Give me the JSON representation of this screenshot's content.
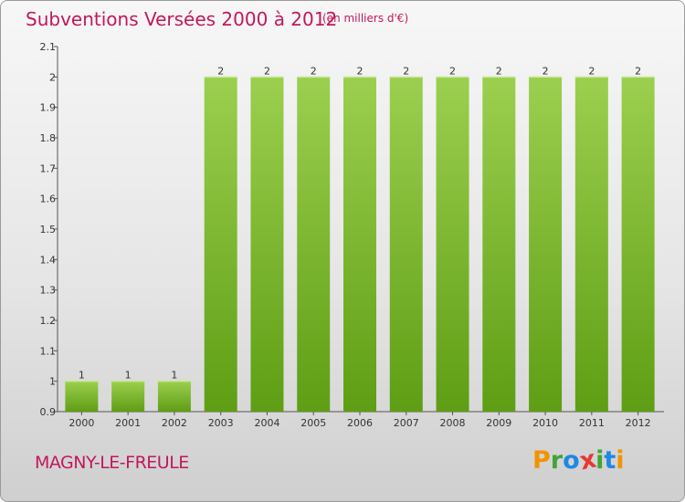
{
  "header": {
    "title": "Subventions Versées 2000 à 2012",
    "subtitle": "(en milliers d'€)"
  },
  "footer": {
    "commune": "MAGNY-LE-FREULE",
    "brand": [
      "P",
      "r",
      "o",
      "x",
      "i",
      "t",
      "i"
    ],
    "brand_colors": [
      "#f29400",
      "#3fa535",
      "#1e88e5",
      "#e53935",
      "#3fa535",
      "#1e88e5",
      "#f29400"
    ]
  },
  "colors": {
    "bar_light": "#9ccf4f",
    "bar_dark": "#5e9e14",
    "title": "#c2185b"
  },
  "chart_data": {
    "type": "bar",
    "categories": [
      "2000",
      "2001",
      "2002",
      "2003",
      "2004",
      "2005",
      "2006",
      "2007",
      "2008",
      "2009",
      "2010",
      "2011",
      "2012"
    ],
    "values": [
      1,
      1,
      1,
      2,
      2,
      2,
      2,
      2,
      2,
      2,
      2,
      2,
      2
    ],
    "data_labels": [
      "1",
      "1",
      "1",
      "2",
      "2",
      "2",
      "2",
      "2",
      "2",
      "2",
      "2",
      "2",
      "2"
    ],
    "ylim": [
      0.9,
      2.1
    ],
    "yticks": [
      0.9,
      1,
      1.1,
      1.2,
      1.3,
      1.4,
      1.5,
      1.6,
      1.7,
      1.8,
      1.9,
      2,
      2.1
    ],
    "ytick_labels": [
      "0.9",
      "1",
      "1.1",
      "1.2",
      "1.3",
      "1.4",
      "1.5",
      "1.6",
      "1.7",
      "1.8",
      "1.9",
      "2",
      "2.1"
    ],
    "grid": false,
    "legend": "none"
  }
}
